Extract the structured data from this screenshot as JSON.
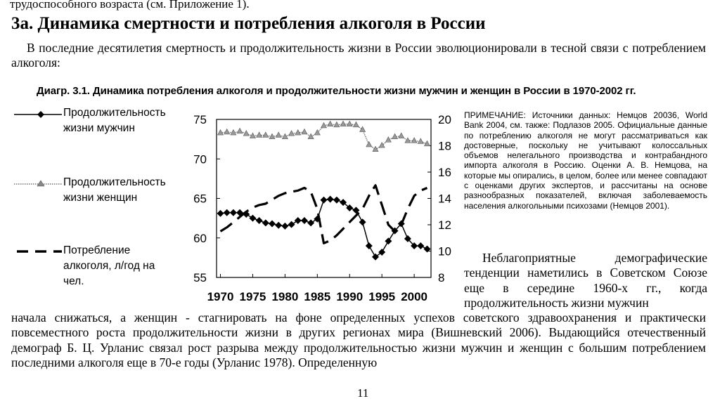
{
  "document": {
    "previous_line": "трудоспособного возраста (см. Приложение 1).",
    "section_heading": "3а. Динамика смертности и потребления алкоголя в России",
    "intro_paragraph": "В последние десятилетия смертность и продолжительность жизни в России эволюционировали в тесной связи с потреблением алкоголя:",
    "figure_title": "Диагр. 3.1. Динамика потребления алкоголя и продолжительности жизни мужчин и женщин в России в 1970-2002 гг.",
    "legend": {
      "male_line1": "Продолжительность",
      "male_line2": "жизни мужчин",
      "female_line1": "Продолжительность",
      "female_line2": "жизни женщин",
      "alcohol_line1": "Потребление",
      "alcohol_line2": "алкоголя, л/год на",
      "alcohol_line3": "чел."
    },
    "note": "ПРИМЕЧАНИЕ: Источники данных: Немцов 20036, World Bank 2004, см. также: Подлазов 2005. Официальные данные по потреблению алкоголя не могут рассматриваться как достоверные, поскольку не учитывают колоссальных объемов нелегального производства и контрабандного импорта алкоголя в Россию. Оценки А. В. Немцова, на которые мы опирались, в целом, более или менее совпадают с оценками других экспертов, и рассчитаны на основе разнообразных показателей, включая заболеваемость населения алкогольными психозами (Немцов 2001).",
    "right_paragraph": "Неблагоприятные демографические тенденции наметились в Советском Союзе еще в середине 1960-х гг., когда продолжительность жизни мужчин",
    "continuation_paragraph": "начала снижаться, а женщин - стагнировать на фоне определенных успехов советского здравоохранения и практически повсеместного роста продолжительности жизни в других регионах мира (Вишневский 2006). Выдающийся отечественный демограф Б. Ц. Урланис связал рост разрыва между продолжительностью жизни мужчин и женщин с большим потреблением последними алкоголя еще в 70-е годы (Урланис 1978). Определенную",
    "page_number": "11"
  },
  "chart_data": {
    "type": "line",
    "title": "Диагр. 3.1. Динамика потребления алкоголя и продолжительности жизни мужчин и женщин в России в 1970-2002 гг.",
    "xlabel": "",
    "ylabel": "",
    "xlim": [
      1970,
      2002
    ],
    "ylim": [
      55,
      75
    ],
    "y2lim": [
      8,
      20
    ],
    "x_ticks": [
      1970,
      1975,
      1980,
      1985,
      1990,
      1995,
      2000
    ],
    "y_ticks": [
      55,
      60,
      65,
      70,
      75
    ],
    "y2_ticks": [
      8,
      10,
      12,
      14,
      16,
      18,
      20
    ],
    "grid": false,
    "x": [
      1970,
      1971,
      1972,
      1973,
      1974,
      1975,
      1976,
      1977,
      1978,
      1979,
      1980,
      1981,
      1982,
      1983,
      1984,
      1985,
      1986,
      1987,
      1988,
      1989,
      1990,
      1991,
      1992,
      1993,
      1994,
      1995,
      1996,
      1997,
      1998,
      1999,
      2000,
      2001,
      2002
    ],
    "series": [
      {
        "name": "Продолжительность жизни мужчин",
        "axis": "left",
        "style": "line-diamond",
        "values": [
          63.1,
          63.2,
          63.2,
          63.2,
          63.0,
          62.5,
          62.2,
          61.9,
          61.8,
          61.6,
          61.5,
          61.7,
          62.2,
          62.2,
          61.9,
          62.4,
          64.8,
          64.9,
          64.8,
          64.5,
          63.8,
          63.5,
          62.0,
          59.0,
          57.6,
          58.2,
          59.6,
          60.9,
          61.8,
          59.9,
          59.0,
          59.0,
          58.6
        ]
      },
      {
        "name": "Продолжительность жизни женщин",
        "axis": "left",
        "style": "dotted-triangle",
        "values": [
          73.3,
          73.4,
          73.3,
          73.5,
          73.2,
          72.9,
          73.0,
          73.0,
          72.8,
          73.0,
          72.8,
          73.2,
          73.3,
          73.4,
          72.8,
          73.3,
          74.2,
          74.4,
          74.3,
          74.4,
          74.4,
          74.3,
          73.7,
          71.8,
          71.2,
          71.7,
          72.4,
          72.8,
          72.9,
          72.3,
          72.3,
          72.2,
          71.9
        ]
      },
      {
        "name": "Потребление алкоголя, л/год на чел.",
        "axis": "right",
        "style": "dashed",
        "values": [
          11.5,
          11.8,
          12.2,
          12.6,
          13.0,
          13.3,
          13.5,
          13.6,
          13.9,
          14.2,
          14.4,
          14.5,
          14.6,
          14.8,
          14.5,
          13.2,
          10.6,
          10.8,
          11.2,
          11.7,
          12.2,
          12.7,
          13.2,
          14.2,
          15.0,
          13.5,
          12.0,
          11.5,
          12.0,
          13.2,
          14.2,
          14.6,
          14.8
        ]
      }
    ]
  }
}
